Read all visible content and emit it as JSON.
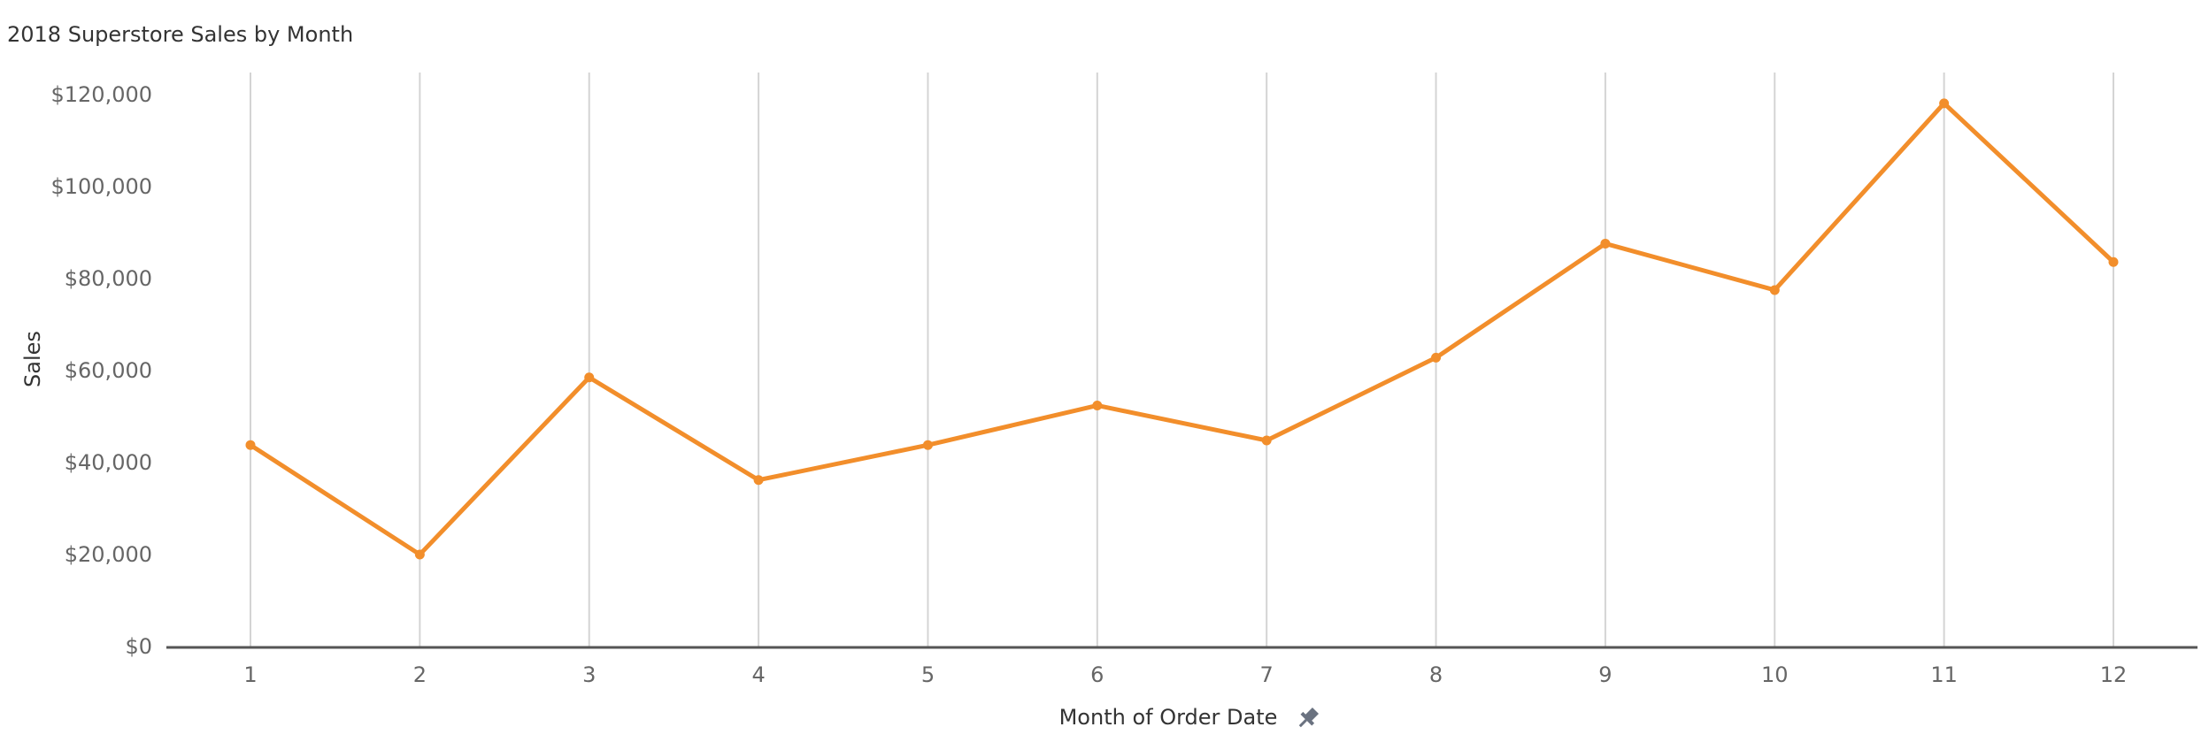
{
  "chart_data": {
    "type": "line",
    "title": "2018 Superstore Sales by Month",
    "x_label": "Month of Order Date",
    "y_label": "Sales",
    "categories": [
      "1",
      "2",
      "3",
      "4",
      "5",
      "6",
      "7",
      "8",
      "9",
      "10",
      "11",
      "12"
    ],
    "series": [
      {
        "name": "Sales",
        "color": "#f28e2b",
        "values": [
          44000,
          20200,
          58700,
          36400,
          44000,
          52600,
          45000,
          63000,
          87800,
          77700,
          118300,
          83800
        ]
      }
    ],
    "ylim": [
      0,
      125000
    ],
    "yticks": [
      {
        "value": 0,
        "label": "$0"
      },
      {
        "value": 20000,
        "label": "$20,000"
      },
      {
        "value": 40000,
        "label": "$40,000"
      },
      {
        "value": 60000,
        "label": "$60,000"
      },
      {
        "value": 80000,
        "label": "$80,000"
      },
      {
        "value": 100000,
        "label": "$100,000"
      },
      {
        "value": 120000,
        "label": "$120,000"
      }
    ],
    "grid": true
  }
}
